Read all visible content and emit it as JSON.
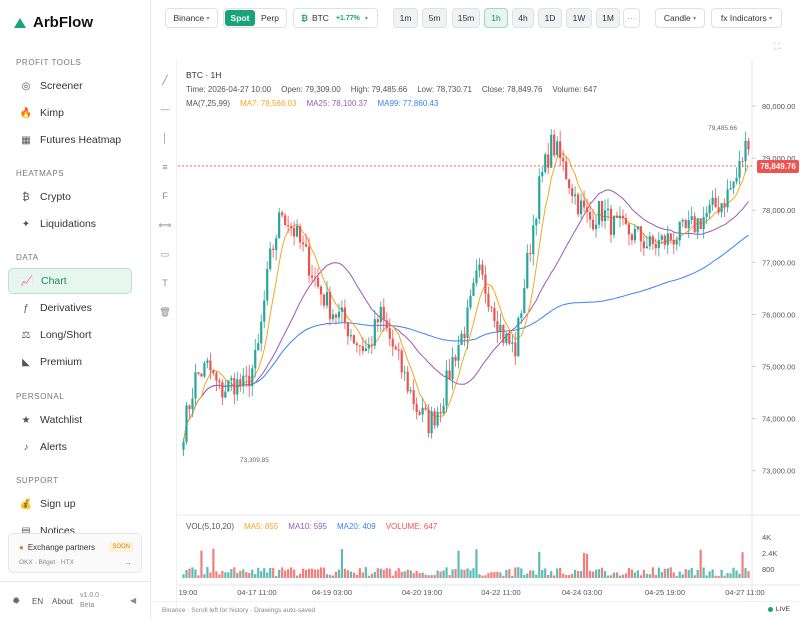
{
  "app": {
    "title": "ArbFlow"
  },
  "sidebar": {
    "sections": [
      {
        "label": "PROFIT TOOLS",
        "items": [
          {
            "label": "Screener",
            "icon": "target-icon"
          },
          {
            "label": "Kimp",
            "icon": "flame-icon"
          },
          {
            "label": "Futures Heatmap",
            "icon": "grid-icon"
          }
        ]
      },
      {
        "label": "HEATMAPS",
        "items": [
          {
            "label": "Crypto",
            "icon": "bitcoin-icon"
          },
          {
            "label": "Liquidations",
            "icon": "spark-icon"
          }
        ]
      },
      {
        "label": "DATA",
        "items": [
          {
            "label": "Chart",
            "icon": "chart-line-icon"
          },
          {
            "label": "Derivatives",
            "icon": "function-icon"
          },
          {
            "label": "Long/Short",
            "icon": "scale-icon"
          },
          {
            "label": "Premium",
            "icon": "triangle-ruler-icon"
          }
        ]
      },
      {
        "label": "PERSONAL",
        "items": [
          {
            "label": "Watchlist",
            "icon": "star-icon"
          },
          {
            "label": "Alerts",
            "icon": "bell-icon"
          }
        ]
      },
      {
        "label": "SUPPORT",
        "items": [
          {
            "label": "Sign up",
            "icon": "bag-icon"
          },
          {
            "label": "Notices",
            "icon": "note-icon"
          }
        ]
      }
    ],
    "active_item": "Chart",
    "partner": {
      "title": "Exchange partners",
      "badge": "SOON",
      "list": "OKX · Bitget · HTX",
      "arrow": "→"
    },
    "footer": {
      "lang": "EN",
      "about": "About",
      "version": "v1.0.0 · Beta",
      "collapse": "◀"
    }
  },
  "toolbar": {
    "exchange": "Binance",
    "market_spot": "Spot",
    "market_perp": "Perp",
    "symbol": "BTC",
    "change": "+1.77%",
    "intervals": [
      "1m",
      "5m",
      "15m",
      "1h",
      "4h",
      "1D",
      "1W",
      "1M"
    ],
    "active_interval": "1h",
    "more": "···",
    "chart_type": "Candle",
    "indicators": "fx Indicators"
  },
  "chart": {
    "title": "BTC · 1H",
    "ohlc": {
      "time": "Time: 2026-04-27 10:00",
      "open": "Open: 79,309.00",
      "high": "High: 79,485.66",
      "low": "Low: 78,730.71",
      "close": "Close: 78,849.76",
      "volume": "Volume: 647"
    },
    "ma_label": "MA(7,25,99)",
    "ma7": "MA7: 78,566.03",
    "ma25": "MA25: 78,100.37",
    "ma99": "MA99: 77,860.43",
    "price_label": "78,849.76",
    "high_marker": "79,485.66",
    "low_marker": "73,309.85",
    "vol_label": "VOL(5,10,20)",
    "vol_ma5": "MA5: 855",
    "vol_ma10": "MA10: 595",
    "vol_ma20": "MA20: 409",
    "vol_volume": "VOLUME: 647",
    "colors": {
      "up": "#26a69a",
      "down": "#ef5350",
      "ma7": "#f5a623",
      "ma25": "#9b59b6",
      "ma99": "#3b82f6",
      "accent": "#1aa37a"
    }
  },
  "chart_data": {
    "type": "candlestick",
    "price_axis": {
      "ticks": [
        "80,000.00",
        "79,000.00",
        "78,000.00",
        "77,000.00",
        "76,000.00",
        "75,000.00",
        "74,000.00",
        "73,000.00"
      ]
    },
    "time_axis": {
      "ticks": [
        "19:00",
        "04-17 11:00",
        "04-19 03:00",
        "04-20 19:00",
        "04-22 11:00",
        "04-24 03:00",
        "04-25 19:00",
        "04-27 11:00"
      ]
    },
    "volume_axis": {
      "ticks": [
        "4K",
        "2.4K",
        "800"
      ]
    },
    "close_path": [
      73800,
      74800,
      75000,
      74500,
      74700,
      74600,
      75200,
      77000,
      78000,
      77600,
      77100,
      76500,
      76100,
      75900,
      75500,
      75300,
      76000,
      75400,
      74800,
      74200,
      73900,
      74300,
      75200,
      75800,
      76800,
      76300,
      75600,
      75300,
      77000,
      78500,
      79300,
      78800,
      78200,
      77800,
      78000,
      77700,
      77600,
      77500,
      77300,
      77400,
      77500,
      77600,
      77800,
      78000,
      78200,
      78600,
      79400
    ]
  },
  "footer": {
    "left": "Binance · Scroll left for history · Drawings auto-saved",
    "live": "LIVE"
  }
}
